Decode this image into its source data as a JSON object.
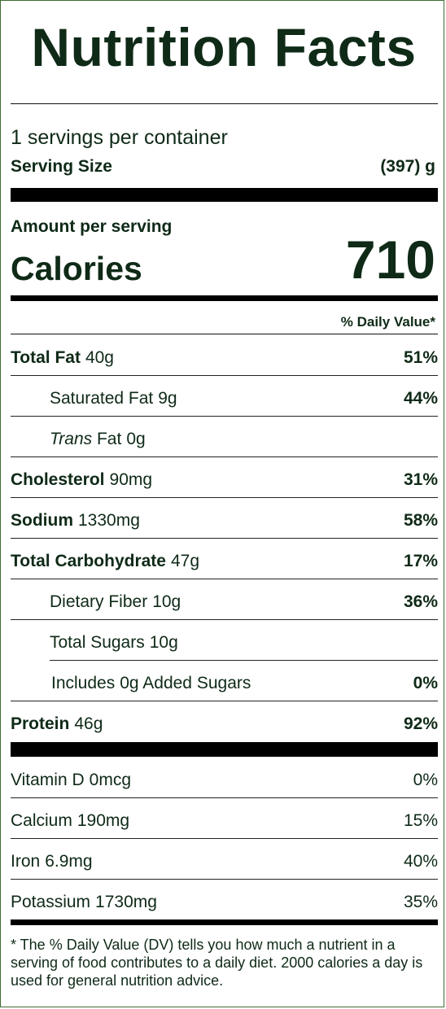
{
  "title": "Nutrition Facts",
  "servings_per_container": "1 servings per container",
  "serving_size": {
    "label": "Serving Size",
    "value": "(397) g"
  },
  "amount_per_serving": "Amount per serving",
  "calories": {
    "label": "Calories",
    "value": "710"
  },
  "daily_value_header": "% Daily Value*",
  "nutrients": {
    "total_fat": {
      "label": "Total Fat",
      "amount": "40g",
      "dv": "51%"
    },
    "saturated_fat": {
      "label": "Saturated Fat",
      "amount": "9g",
      "dv": "44%"
    },
    "trans_fat": {
      "label_italic": "Trans",
      "label": "Fat",
      "amount": "0g"
    },
    "cholesterol": {
      "label": "Cholesterol",
      "amount": "90mg",
      "dv": "31%"
    },
    "sodium": {
      "label": "Sodium",
      "amount": "1330mg",
      "dv": "58%"
    },
    "total_carbohydrate": {
      "label": "Total Carbohydrate",
      "amount": "47g",
      "dv": "17%"
    },
    "dietary_fiber": {
      "label": "Dietary Fiber",
      "amount": "10g",
      "dv": "36%"
    },
    "total_sugars": {
      "label": "Total Sugars",
      "amount": "10g"
    },
    "added_sugars": {
      "prefix": "Includes",
      "amount": "0g",
      "label": "Added Sugars",
      "dv": "0%"
    },
    "protein": {
      "label": "Protein",
      "amount": "46g",
      "dv": "92%"
    }
  },
  "vitamins": {
    "vitamin_d": {
      "label": "Vitamin D",
      "amount": "0mcg",
      "dv": "0%"
    },
    "calcium": {
      "label": "Calcium",
      "amount": "190mg",
      "dv": "15%"
    },
    "iron": {
      "label": "Iron",
      "amount": "6.9mg",
      "dv": "40%"
    },
    "potassium": {
      "label": "Potassium",
      "amount": "1730mg",
      "dv": "35%"
    }
  },
  "footnote": "* The % Daily Value (DV) tells you how much a nutrient in a serving of food contributes to a daily diet. 2000 calories a day is used for general nutrition advice."
}
